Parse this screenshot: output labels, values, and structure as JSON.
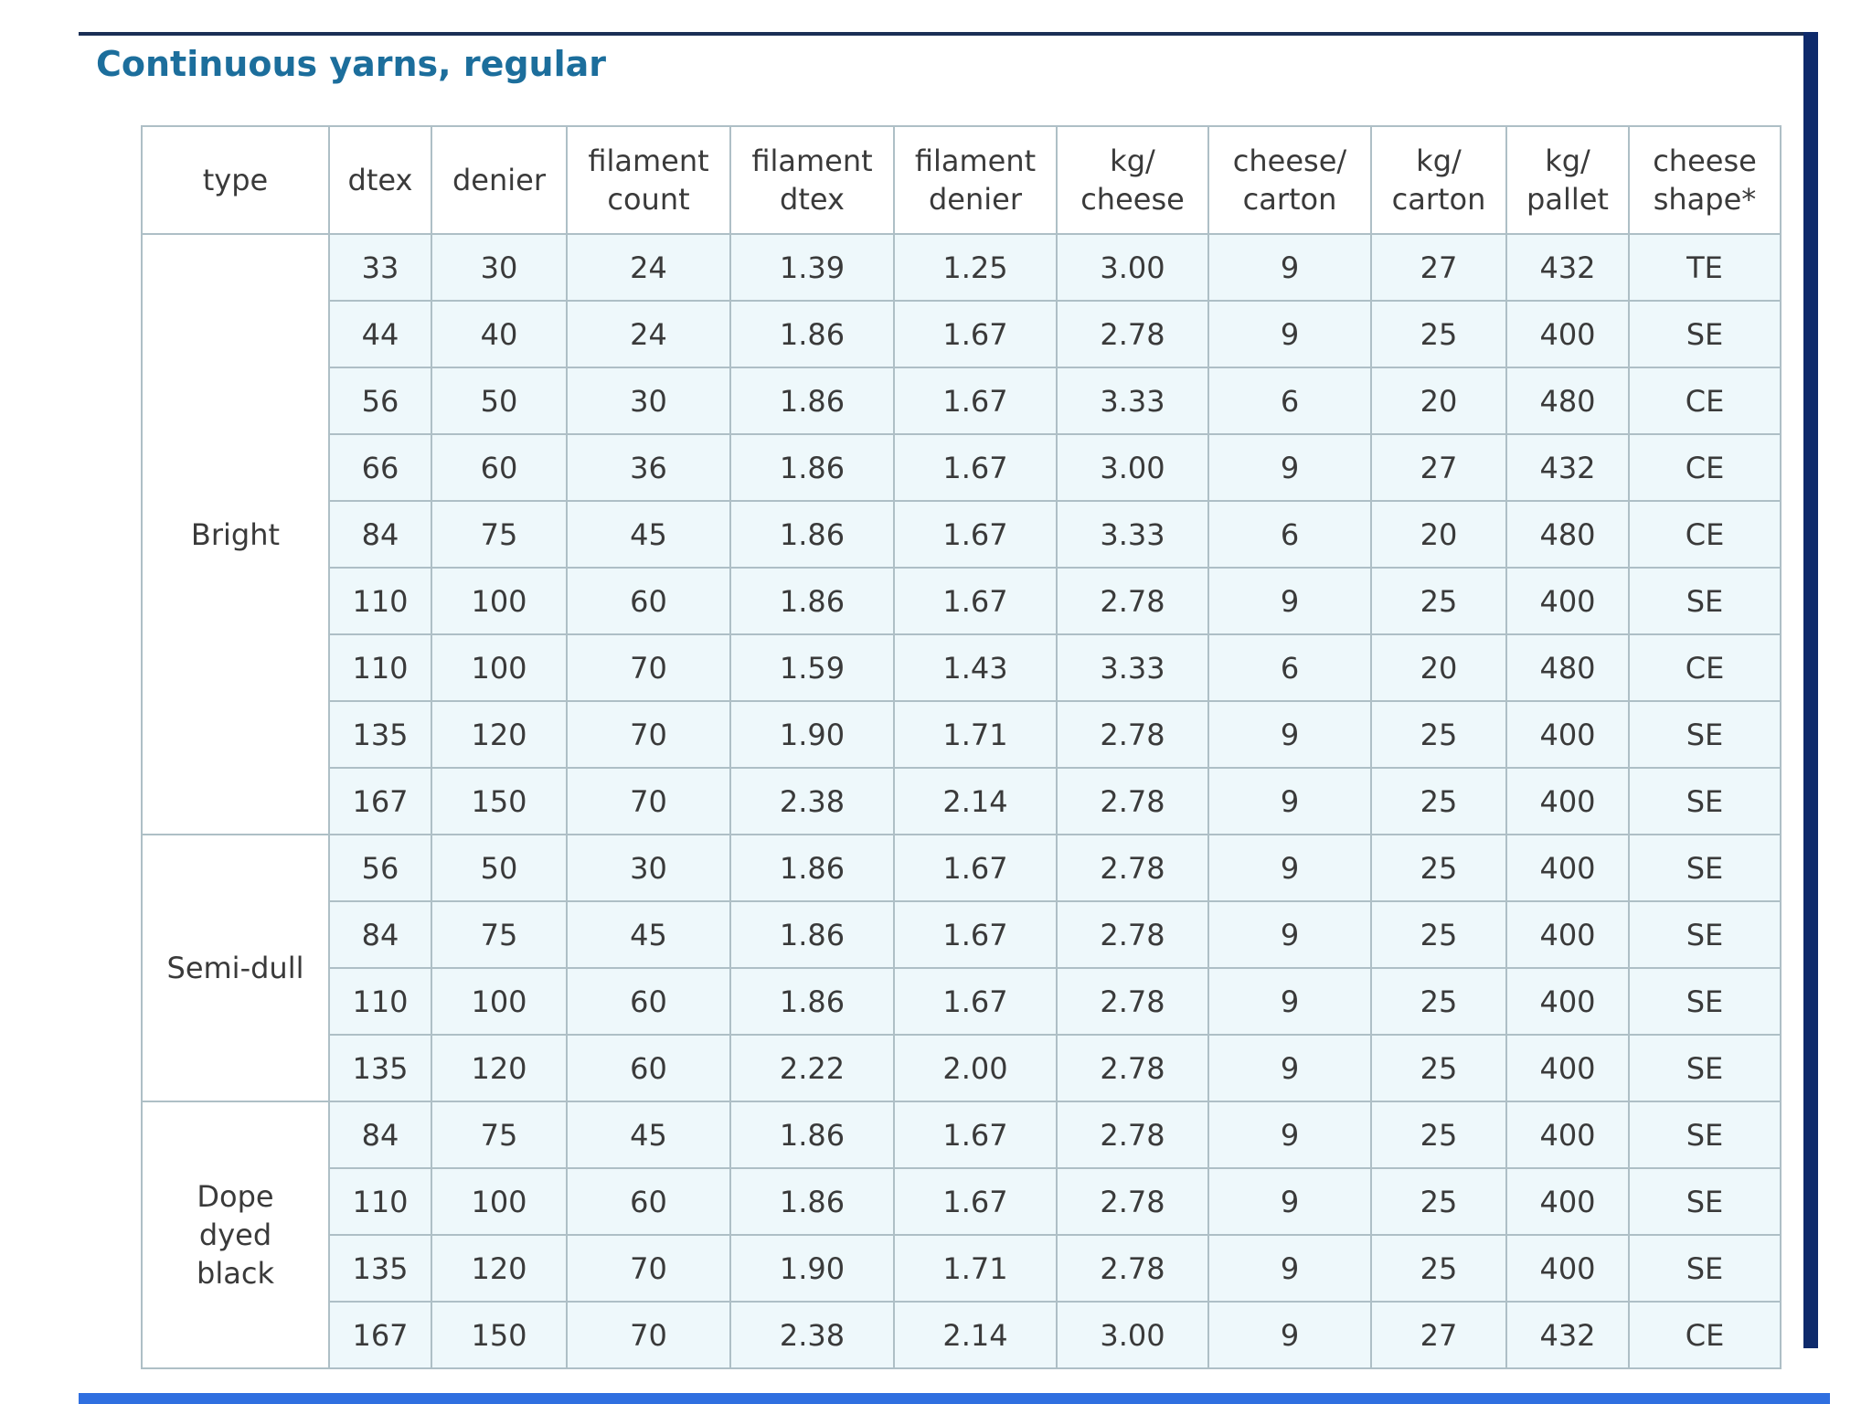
{
  "title": "Continuous yarns, regular",
  "table": {
    "header": [
      "type",
      "dtex",
      "denier",
      "filament count",
      "filament dtex",
      "filament denier",
      "kg/ cheese",
      "cheese/ carton",
      "kg/ carton",
      "kg/ pallet",
      "cheese shape*"
    ],
    "groups": [
      {
        "type": "Bright",
        "rows": [
          [
            "33",
            "30",
            "24",
            "1.39",
            "1.25",
            "3.00",
            "9",
            "27",
            "432",
            "TE"
          ],
          [
            "44",
            "40",
            "24",
            "1.86",
            "1.67",
            "2.78",
            "9",
            "25",
            "400",
            "SE"
          ],
          [
            "56",
            "50",
            "30",
            "1.86",
            "1.67",
            "3.33",
            "6",
            "20",
            "480",
            "CE"
          ],
          [
            "66",
            "60",
            "36",
            "1.86",
            "1.67",
            "3.00",
            "9",
            "27",
            "432",
            "CE"
          ],
          [
            "84",
            "75",
            "45",
            "1.86",
            "1.67",
            "3.33",
            "6",
            "20",
            "480",
            "CE"
          ],
          [
            "110",
            "100",
            "60",
            "1.86",
            "1.67",
            "2.78",
            "9",
            "25",
            "400",
            "SE"
          ],
          [
            "110",
            "100",
            "70",
            "1.59",
            "1.43",
            "3.33",
            "6",
            "20",
            "480",
            "CE"
          ],
          [
            "135",
            "120",
            "70",
            "1.90",
            "1.71",
            "2.78",
            "9",
            "25",
            "400",
            "SE"
          ],
          [
            "167",
            "150",
            "70",
            "2.38",
            "2.14",
            "2.78",
            "9",
            "25",
            "400",
            "SE"
          ]
        ]
      },
      {
        "type": "Semi-dull",
        "rows": [
          [
            "56",
            "50",
            "30",
            "1.86",
            "1.67",
            "2.78",
            "9",
            "25",
            "400",
            "SE"
          ],
          [
            "84",
            "75",
            "45",
            "1.86",
            "1.67",
            "2.78",
            "9",
            "25",
            "400",
            "SE"
          ],
          [
            "110",
            "100",
            "60",
            "1.86",
            "1.67",
            "2.78",
            "9",
            "25",
            "400",
            "SE"
          ],
          [
            "135",
            "120",
            "60",
            "2.22",
            "2.00",
            "2.78",
            "9",
            "25",
            "400",
            "SE"
          ]
        ]
      },
      {
        "type": "Dope dyed black",
        "rows": [
          [
            "84",
            "75",
            "45",
            "1.86",
            "1.67",
            "2.78",
            "9",
            "25",
            "400",
            "SE"
          ],
          [
            "110",
            "100",
            "60",
            "1.86",
            "1.67",
            "2.78",
            "9",
            "25",
            "400",
            "SE"
          ],
          [
            "135",
            "120",
            "70",
            "1.90",
            "1.71",
            "2.78",
            "9",
            "25",
            "400",
            "SE"
          ],
          [
            "167",
            "150",
            "70",
            "2.38",
            "2.14",
            "3.00",
            "9",
            "27",
            "432",
            "CE"
          ]
        ]
      }
    ]
  }
}
